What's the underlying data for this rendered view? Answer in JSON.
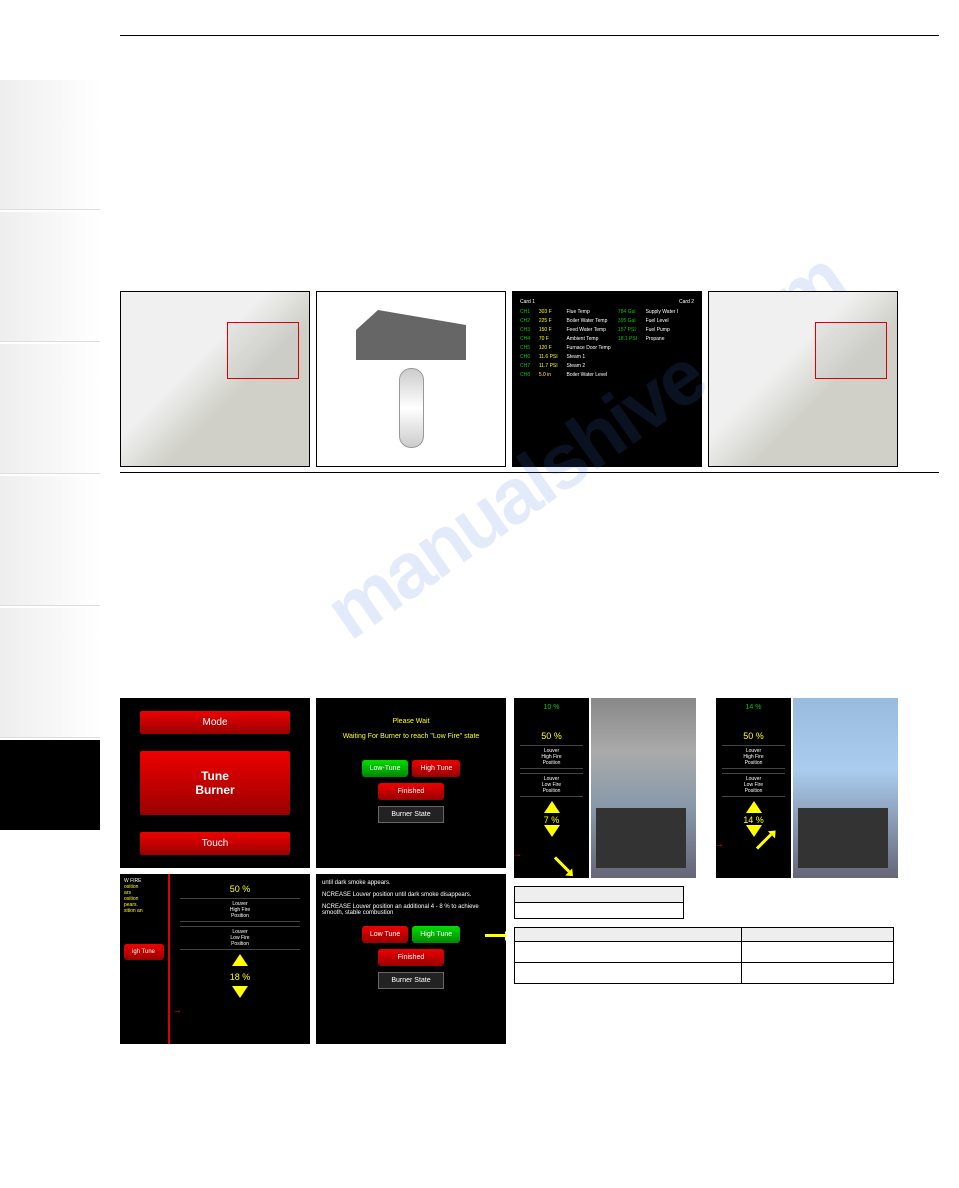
{
  "watermark": "manualshive.com",
  "sidebar": {
    "items": [
      "",
      "",
      "",
      "",
      ""
    ]
  },
  "channels": {
    "card1": "Card 1",
    "card2": "Card 2",
    "rows": [
      {
        "ch": "CH1",
        "v1": "303 F",
        "d1": "Flue Temp",
        "v2": "784 Gal",
        "d2": "Supply Water I"
      },
      {
        "ch": "CH2",
        "v1": "225 F",
        "d1": "Boiler Water Temp",
        "v2": "395 Gal",
        "d2": "Fuel Level"
      },
      {
        "ch": "CH3",
        "v1": "150 F",
        "d1": "Feed Water Temp",
        "v2": "157 PSI",
        "d2": "Fuel Pump"
      },
      {
        "ch": "CH4",
        "v1": "70 F",
        "d1": "Ambient Temp",
        "v2": "18.1 PSI",
        "d2": "Propane"
      },
      {
        "ch": "CH5",
        "v1": "120 F",
        "d1": "Furnace Door Temp",
        "v2": "",
        "d2": ""
      },
      {
        "ch": "CH6",
        "v1": "11.6 PSI",
        "d1": "Steam 1",
        "v2": "",
        "d2": ""
      },
      {
        "ch": "CH7",
        "v1": "11.7 PSI",
        "d1": "Steam 2",
        "v2": "",
        "d2": ""
      },
      {
        "ch": "CH8",
        "v1": "5.0 in",
        "d1": "Boiler Water Level",
        "v2": "",
        "d2": ""
      }
    ]
  },
  "mode_screen": {
    "btn1": "Mode",
    "btn2": "Tune\nBurner",
    "btn3": "Touch"
  },
  "wait_screen": {
    "l1": "Please Wait",
    "l2": "Waiting For Burner to reach \"Low Fire\" state",
    "low": "Low-Tune",
    "high": "High Tune",
    "fin": "Finished",
    "state": "Burner State"
  },
  "louver1": {
    "top": "W FIRE",
    "t1": "osition",
    "t2": "ars",
    "t3": "osition",
    "t4": "pears.",
    "t5": "sition an",
    "high": "50 %",
    "hlbl": "Louver\nHigh Fire\nPosition",
    "llbl": "Louver\nLow Fire\nPosition",
    "low": "18 %",
    "btn": "igh Tune"
  },
  "louver2": {
    "t1": "until dark smoke appears.",
    "t2": "NCREASE Louver position until dark smoke disappears.",
    "t3": "NCREASE Louver position an additional 4 - 8 % to achieve smooth, stable combustion",
    "low": "Low Tune",
    "high": "High Tune",
    "fin": "Finished",
    "state": "Burner State"
  },
  "smoke1": {
    "top": "10 %",
    "mid": "50 %",
    "hlbl": "Louver\nHigh Fire\nPosition",
    "llbl": "Louver\nLow Fire\nPosition",
    "low": "7 %"
  },
  "smoke2": {
    "top": "14 %",
    "mid": "50 %",
    "hlbl": "Louver\nHigh Fire\nPosition",
    "llbl": "Louver\nLow Fire\nPosition",
    "low": "14 %"
  },
  "table_small": {
    "r1": "",
    "r2": ""
  },
  "table_big": {
    "headers": [
      "",
      ""
    ],
    "rows": [
      [
        "",
        ""
      ],
      [
        "",
        ""
      ]
    ]
  }
}
